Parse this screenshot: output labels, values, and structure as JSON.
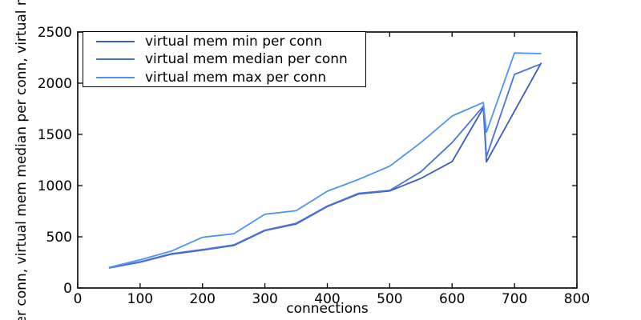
{
  "chart_data": {
    "type": "line",
    "title": "",
    "xlabel": "connections",
    "ylabel": "er conn, virtual mem median per conn, virtual m",
    "xlim": [
      0,
      800
    ],
    "ylim": [
      0,
      2500
    ],
    "xticks": [
      0,
      100,
      200,
      300,
      400,
      500,
      600,
      700,
      800
    ],
    "yticks": [
      0,
      500,
      1000,
      1500,
      2000,
      2500
    ],
    "grid": false,
    "legend_position": "upper left",
    "axis_color": "#000000",
    "background_color": "#ffffff",
    "x": [
      50,
      100,
      150,
      200,
      250,
      300,
      350,
      400,
      450,
      500,
      550,
      600,
      650,
      655,
      700,
      743
    ],
    "series": [
      {
        "name": "virtual mem min per conn",
        "color": "#3e58c4",
        "values": [
          195,
          252,
          330,
          370,
          415,
          560,
          625,
          795,
          918,
          948,
          1070,
          1235,
          1758,
          1232,
          1727,
          2200
        ]
      },
      {
        "name": "virtual mem median per conn",
        "color": "#4a73d9",
        "values": [
          197,
          256,
          335,
          376,
          420,
          565,
          632,
          800,
          924,
          953,
          1135,
          1420,
          1775,
          1283,
          2086,
          2190
        ]
      },
      {
        "name": "virtual mem max per conn",
        "color": "#4d94f5",
        "values": [
          200,
          275,
          360,
          495,
          530,
          720,
          755,
          945,
          1060,
          1190,
          1420,
          1680,
          1812,
          1522,
          2295,
          2289
        ]
      }
    ]
  }
}
